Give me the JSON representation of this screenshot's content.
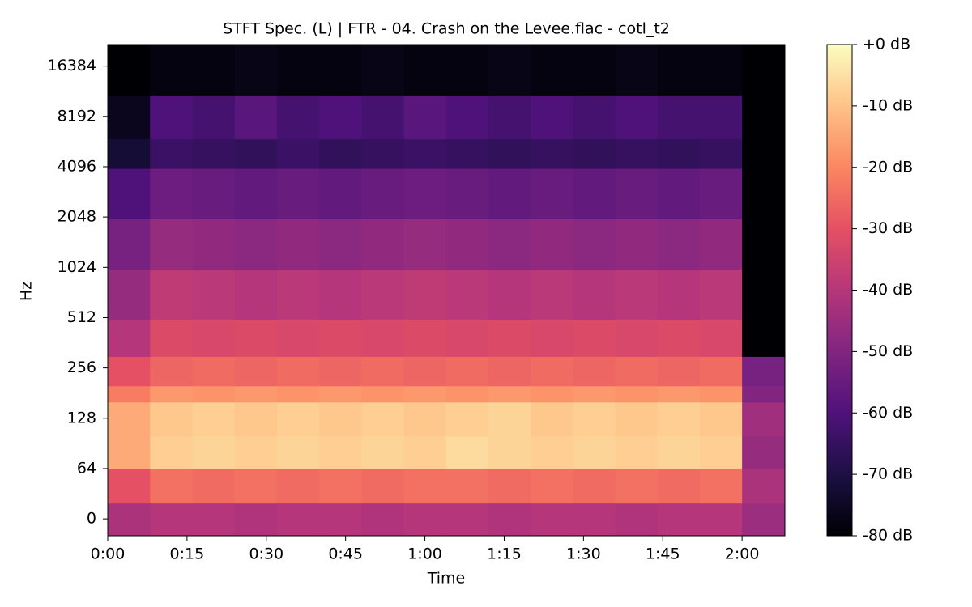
{
  "chart_data": {
    "type": "heatmap",
    "title": "STFT Spec. (L) | FTR - 04. Crash on the Levee.flac - cotl_t2",
    "xlabel": "Time",
    "ylabel": "Hz",
    "colormap": "magma",
    "yscale": "symlog",
    "linthresh": 64,
    "x_bins": [
      0,
      8,
      16,
      24,
      32,
      40,
      48,
      56,
      64,
      72,
      80,
      88,
      96,
      104,
      112,
      120,
      128.1
    ],
    "y_bins": [
      -21.5,
      20,
      64,
      100,
      160,
      200,
      300,
      500,
      1000,
      2000,
      4000,
      6000,
      11000,
      22050
    ],
    "values": [
      [
        -42,
        -40,
        -40,
        -41,
        -40,
        -40,
        -41,
        -40,
        -40,
        -41,
        -40,
        -40,
        -41,
        -40,
        -40,
        -45
      ],
      [
        -30,
        -24,
        -25,
        -24,
        -25,
        -24,
        -25,
        -24,
        -24,
        -25,
        -24,
        -25,
        -24,
        -25,
        -24,
        -42
      ],
      [
        -14,
        -8,
        -7,
        -8,
        -7,
        -8,
        -7,
        -8,
        -6,
        -7,
        -8,
        -7,
        -8,
        -7,
        -8,
        -46
      ],
      [
        -14,
        -9,
        -8,
        -9,
        -8,
        -9,
        -8,
        -9,
        -8,
        -7,
        -9,
        -8,
        -9,
        -8,
        -9,
        -44
      ],
      [
        -22,
        -17,
        -18,
        -17,
        -18,
        -17,
        -18,
        -17,
        -18,
        -17,
        -18,
        -17,
        -18,
        -17,
        -18,
        -50
      ],
      [
        -30,
        -26,
        -25,
        -26,
        -25,
        -26,
        -25,
        -26,
        -25,
        -26,
        -25,
        -26,
        -25,
        -26,
        -25,
        -52
      ],
      [
        -40,
        -32,
        -33,
        -32,
        -33,
        -32,
        -33,
        -32,
        -33,
        -32,
        -33,
        -32,
        -33,
        -32,
        -33,
        -80
      ],
      [
        -46,
        -38,
        -39,
        -40,
        -39,
        -40,
        -39,
        -38,
        -39,
        -40,
        -39,
        -40,
        -39,
        -40,
        -39,
        -80
      ],
      [
        -52,
        -46,
        -47,
        -48,
        -47,
        -48,
        -47,
        -46,
        -47,
        -48,
        -47,
        -48,
        -47,
        -48,
        -47,
        -80
      ],
      [
        -60,
        -54,
        -55,
        -56,
        -55,
        -56,
        -55,
        -54,
        -55,
        -56,
        -55,
        -56,
        -55,
        -56,
        -55,
        -80
      ],
      [
        -72,
        -64,
        -65,
        -66,
        -64,
        -66,
        -65,
        -64,
        -65,
        -66,
        -65,
        -66,
        -65,
        -66,
        -65,
        -80
      ],
      [
        -76,
        -60,
        -62,
        -58,
        -62,
        -60,
        -62,
        -58,
        -60,
        -62,
        -60,
        -62,
        -60,
        -62,
        -62,
        -80
      ],
      [
        -80,
        -78,
        -78,
        -77,
        -78,
        -78,
        -77,
        -78,
        -78,
        -77,
        -78,
        -78,
        -77,
        -78,
        -78,
        -80
      ]
    ],
    "xlim": [
      0,
      128.1
    ],
    "ylim": [
      -21.5,
      22050
    ],
    "clim": [
      -80,
      0
    ],
    "xticks": [
      {
        "value": 0,
        "label": "0:00"
      },
      {
        "value": 15,
        "label": "0:15"
      },
      {
        "value": 30,
        "label": "0:30"
      },
      {
        "value": 45,
        "label": "0:45"
      },
      {
        "value": 60,
        "label": "1:00"
      },
      {
        "value": 75,
        "label": "1:15"
      },
      {
        "value": 90,
        "label": "1:30"
      },
      {
        "value": 105,
        "label": "1:45"
      },
      {
        "value": 120,
        "label": "2:00"
      }
    ],
    "yticks": [
      0,
      64,
      128,
      256,
      512,
      1024,
      2048,
      4096,
      8192,
      16384
    ],
    "cticks": [
      {
        "value": 0,
        "label": "+0 dB"
      },
      {
        "value": -10,
        "label": "-10 dB"
      },
      {
        "value": -20,
        "label": "-20 dB"
      },
      {
        "value": -30,
        "label": "-30 dB"
      },
      {
        "value": -40,
        "label": "-40 dB"
      },
      {
        "value": -50,
        "label": "-50 dB"
      },
      {
        "value": -60,
        "label": "-60 dB"
      },
      {
        "value": -70,
        "label": "-70 dB"
      },
      {
        "value": -80,
        "label": "-80 dB"
      }
    ]
  }
}
